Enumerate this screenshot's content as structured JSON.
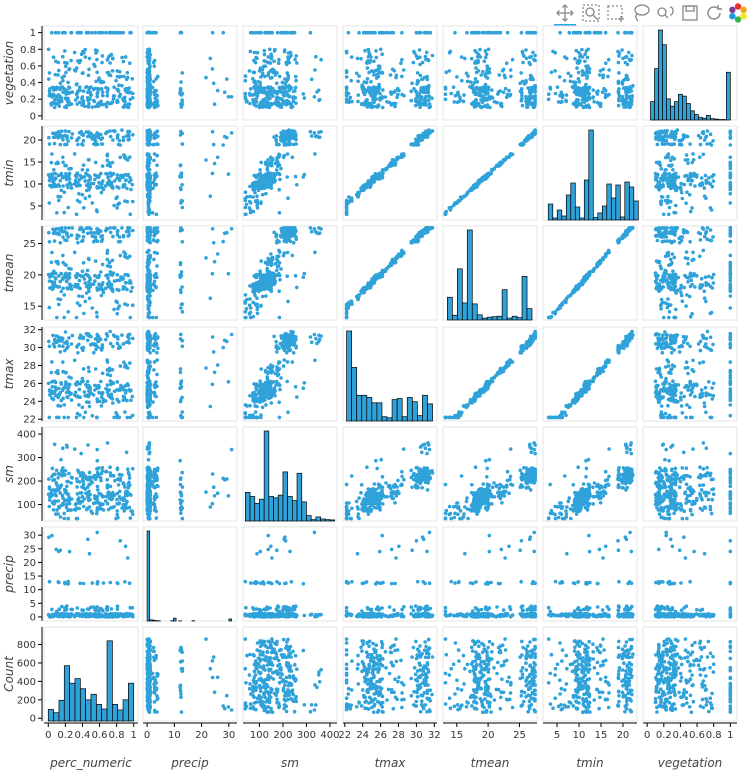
{
  "toolbar": {
    "tools": [
      {
        "name": "pan-tool",
        "icon": "pan-icon",
        "active": true
      },
      {
        "name": "box-zoom-tool",
        "icon": "box-zoom-icon",
        "active": false
      },
      {
        "name": "box-select-tool",
        "icon": "box-select-icon",
        "active": false
      },
      {
        "name": "lasso-select-tool",
        "icon": "lasso-icon",
        "active": false
      },
      {
        "name": "wheel-zoom-tool",
        "icon": "wheel-zoom-icon",
        "active": false
      },
      {
        "name": "save-tool",
        "icon": "save-icon",
        "active": false
      },
      {
        "name": "reset-tool",
        "icon": "reset-icon",
        "active": false
      },
      {
        "name": "bokeh-logo",
        "icon": "bokeh-logo-icon",
        "active": false
      }
    ]
  },
  "chart_data": {
    "type": "scatter-matrix",
    "colors": {
      "point": "#30a2da",
      "bar_fill": "#30a2da",
      "bar_stroke": "#000000",
      "panel_border": "#e5e5e5"
    },
    "x_variables": [
      "perc_numeric",
      "precip",
      "sm",
      "tmax",
      "tmean",
      "tmin",
      "vegetation"
    ],
    "y_variables": [
      "vegetation",
      "tmin",
      "tmean",
      "tmax",
      "sm",
      "precip",
      "Count"
    ],
    "ranges": {
      "perc_numeric": [
        -0.05,
        1.05
      ],
      "precip": [
        -1.5,
        33
      ],
      "sm": [
        30,
        430
      ],
      "tmax": [
        21.8,
        32.3
      ],
      "tmean": [
        12.8,
        27.8
      ],
      "tmin": [
        1.8,
        23.2
      ],
      "vegetation": [
        -0.05,
        1.08
      ],
      "Count": [
        -30,
        990
      ]
    },
    "x_ticks": {
      "perc_numeric": [
        {
          "v": 0,
          "l": "0"
        },
        {
          "v": 0.2,
          "l": "0.2"
        },
        {
          "v": 0.4,
          "l": "0.4"
        },
        {
          "v": 0.6,
          "l": "0.6"
        },
        {
          "v": 0.8,
          "l": "0.8"
        },
        {
          "v": 1,
          "l": "1"
        }
      ],
      "precip": [
        {
          "v": 0,
          "l": "0"
        },
        {
          "v": 10,
          "l": "10"
        },
        {
          "v": 20,
          "l": "20"
        },
        {
          "v": 30,
          "l": "30"
        }
      ],
      "sm": [
        {
          "v": 100,
          "l": "100"
        },
        {
          "v": 200,
          "l": "200"
        },
        {
          "v": 300,
          "l": "300"
        },
        {
          "v": 400,
          "l": "400"
        }
      ],
      "tmax": [
        {
          "v": 22,
          "l": "22"
        },
        {
          "v": 24,
          "l": "24"
        },
        {
          "v": 26,
          "l": "26"
        },
        {
          "v": 28,
          "l": "28"
        },
        {
          "v": 30,
          "l": "30"
        },
        {
          "v": 32,
          "l": "32"
        }
      ],
      "tmean": [
        {
          "v": 15,
          "l": "15"
        },
        {
          "v": 20,
          "l": "20"
        },
        {
          "v": 25,
          "l": "25"
        }
      ],
      "tmin": [
        {
          "v": 5,
          "l": "5"
        },
        {
          "v": 10,
          "l": "10"
        },
        {
          "v": 15,
          "l": "15"
        },
        {
          "v": 20,
          "l": "20"
        }
      ],
      "vegetation": [
        {
          "v": 0,
          "l": "0"
        },
        {
          "v": 0.2,
          "l": "0.2"
        },
        {
          "v": 0.4,
          "l": "0.4"
        },
        {
          "v": 0.6,
          "l": "0.6"
        },
        {
          "v": 0.8,
          "l": "0.8"
        },
        {
          "v": 1,
          "l": "1"
        }
      ]
    },
    "y_ticks": {
      "vegetation": [
        {
          "v": 0,
          "l": "0"
        },
        {
          "v": 0.2,
          "l": "0.2"
        },
        {
          "v": 0.4,
          "l": "0.4"
        },
        {
          "v": 0.6,
          "l": "0.6"
        },
        {
          "v": 0.8,
          "l": "0.8"
        },
        {
          "v": 1,
          "l": "1"
        }
      ],
      "tmin": [
        {
          "v": 5,
          "l": "5"
        },
        {
          "v": 10,
          "l": "10"
        },
        {
          "v": 15,
          "l": "15"
        },
        {
          "v": 20,
          "l": "20"
        }
      ],
      "tmean": [
        {
          "v": 15,
          "l": "15"
        },
        {
          "v": 20,
          "l": "20"
        },
        {
          "v": 25,
          "l": "25"
        }
      ],
      "tmax": [
        {
          "v": 22,
          "l": "22"
        },
        {
          "v": 24,
          "l": "24"
        },
        {
          "v": 26,
          "l": "26"
        },
        {
          "v": 28,
          "l": "28"
        },
        {
          "v": 30,
          "l": "30"
        },
        {
          "v": 32,
          "l": "32"
        }
      ],
      "sm": [
        {
          "v": 100,
          "l": "100"
        },
        {
          "v": 200,
          "l": "200"
        },
        {
          "v": 300,
          "l": "300"
        },
        {
          "v": 400,
          "l": "400"
        }
      ],
      "precip": [
        {
          "v": 0,
          "l": "0"
        },
        {
          "v": 5,
          "l": "5"
        },
        {
          "v": 10,
          "l": "10"
        },
        {
          "v": 15,
          "l": "15"
        },
        {
          "v": 20,
          "l": "20"
        },
        {
          "v": 25,
          "l": "25"
        },
        {
          "v": 30,
          "l": "30"
        }
      ],
      "Count": [
        {
          "v": 0,
          "l": "0"
        },
        {
          "v": 200,
          "l": "200"
        },
        {
          "v": 400,
          "l": "400"
        },
        {
          "v": 600,
          "l": "600"
        },
        {
          "v": 800,
          "l": "800"
        }
      ]
    },
    "histograms": {
      "perc_numeric": {
        "range": [
          0,
          1
        ],
        "counts": [
          95,
          60,
          195,
          570,
          380,
          430,
          320,
          200,
          260,
          150,
          100,
          840,
          150,
          90,
          200,
          380
        ]
      },
      "precip": {
        "range": [
          0,
          31
        ],
        "counts": [
          880,
          12,
          8,
          4,
          2,
          0,
          0,
          0,
          0,
          3,
          28,
          0,
          2,
          0,
          0,
          0,
          0,
          3,
          0,
          0,
          0,
          0,
          0,
          0,
          0,
          0,
          0,
          0,
          0,
          0,
          0,
          20
        ]
      },
      "sm": {
        "range": [
          40,
          420
        ],
        "counts": [
          210,
          180,
          130,
          160,
          660,
          180,
          170,
          190,
          360,
          180,
          150,
          350,
          140,
          40,
          10,
          30,
          15,
          10,
          8
        ]
      },
      "tmax": {
        "range": [
          22.2,
          31.8
        ],
        "counts": [
          840,
          500,
          240,
          240,
          220,
          170,
          170,
          40,
          30,
          200,
          210,
          40,
          220,
          180,
          50,
          240,
          160
        ]
      },
      "tmean": {
        "range": [
          13.5,
          27.0
        ],
        "counts": [
          240,
          50,
          540,
          180,
          950,
          170,
          55,
          20,
          30,
          35,
          40,
          320,
          20,
          40,
          25,
          460,
          120
        ]
      },
      "tmin": {
        "range": [
          3.0,
          23.5
        ],
        "counts": [
          160,
          20,
          100,
          40,
          250,
          370,
          130,
          20,
          400,
          900,
          25,
          70,
          140,
          360,
          220,
          350,
          30,
          380,
          330,
          190
        ]
      },
      "vegetation": {
        "range": [
          0.04,
          1.0
        ],
        "counts": [
          200,
          560,
          980,
          820,
          230,
          150,
          200,
          280,
          260,
          180,
          100,
          60,
          30,
          20,
          50,
          15,
          10,
          5,
          5,
          520
        ]
      }
    }
  }
}
